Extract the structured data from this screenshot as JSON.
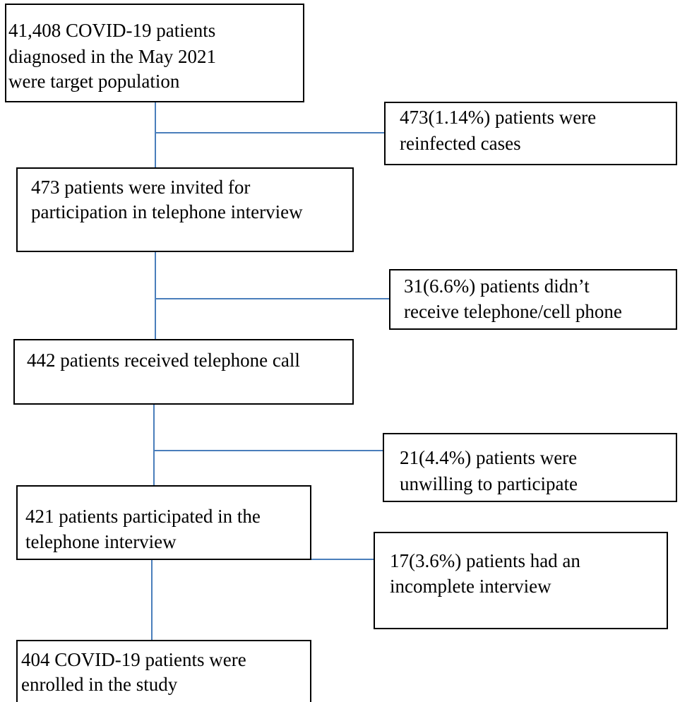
{
  "steps": [
    {
      "lines": [
        "41,408 COVID-19 patients",
        "diagnosed in the May 2021",
        "were target population"
      ]
    },
    {
      "lines": [
        "473 patients were invited for",
        "participation in telephone interview"
      ]
    },
    {
      "lines": [
        "442 patients received telephone call"
      ]
    },
    {
      "lines": [
        "421 patients participated in the",
        "telephone interview"
      ]
    },
    {
      "lines": [
        "404 COVID-19 patients were",
        "enrolled in the study"
      ]
    }
  ],
  "exclusions": [
    {
      "lines": [
        "473(1.14%) patients were",
        "reinfected cases"
      ]
    },
    {
      "lines": [
        "31(6.6%) patients didn’t",
        "receive telephone/cell phone"
      ]
    },
    {
      "lines": [
        "21(4.4%) patients were",
        "unwilling to participate"
      ]
    },
    {
      "lines": [
        "17(3.6%) patients had an",
        "incomplete interview"
      ]
    }
  ]
}
